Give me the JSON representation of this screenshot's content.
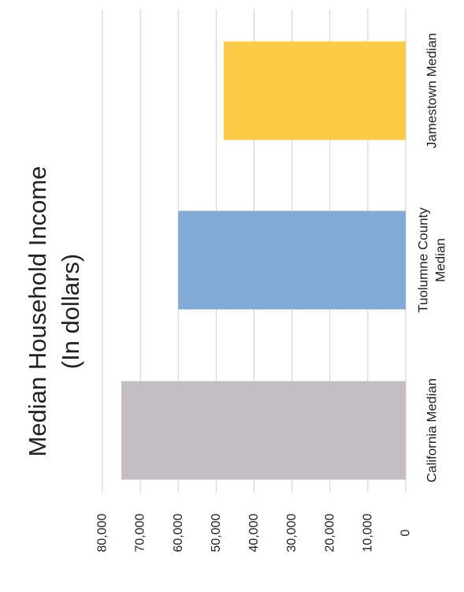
{
  "chart_data": {
    "type": "bar",
    "orientation": "horizontal",
    "title": "Median Household Income",
    "subtitle": "(In dollars)",
    "categories": [
      "California Median",
      "Tuolumne County Median",
      "Jamestown Median"
    ],
    "category_lines": [
      [
        "California Median"
      ],
      [
        "Tuolumne County",
        "Median"
      ],
      [
        "Jamestown Median"
      ]
    ],
    "values": [
      75000,
      60000,
      48000
    ],
    "colors": [
      "#c4bec4",
      "#82aad6",
      "#fbcb45"
    ],
    "xlim": [
      0,
      80000
    ],
    "ticks": [
      0,
      10000,
      20000,
      30000,
      40000,
      50000,
      60000,
      70000,
      80000
    ],
    "tick_labels": [
      "0",
      "10,000",
      "20,000",
      "30,000",
      "40,000",
      "50,000",
      "60,000",
      "70,000",
      "80,000"
    ],
    "grid": true,
    "rotated": "90° counter-clockwise"
  }
}
